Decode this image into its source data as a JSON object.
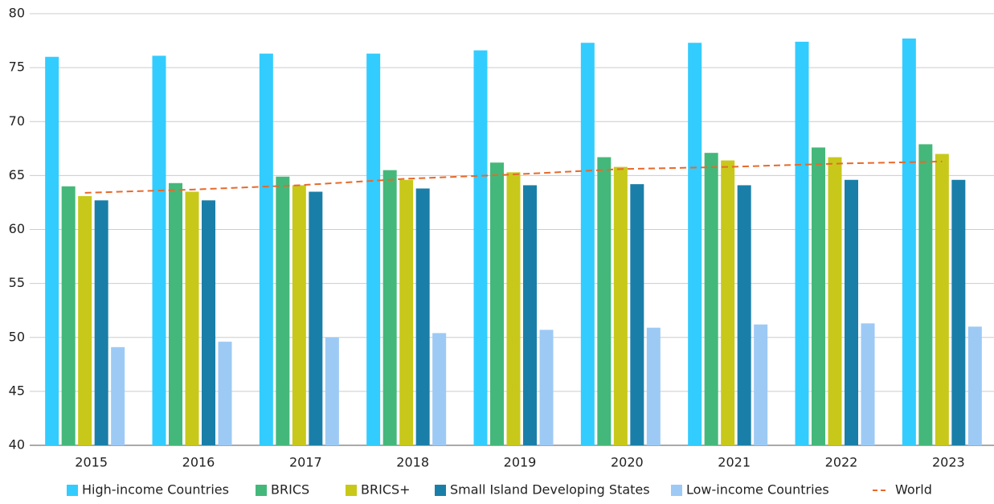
{
  "chart_data": {
    "type": "bar",
    "categories": [
      "2015",
      "2016",
      "2017",
      "2018",
      "2019",
      "2020",
      "2021",
      "2022",
      "2023"
    ],
    "series": [
      {
        "name": "High-income Countries",
        "color": "#33ccff",
        "values": [
          76.0,
          76.1,
          76.3,
          76.3,
          76.6,
          77.3,
          77.3,
          77.4,
          77.7
        ]
      },
      {
        "name": "BRICS",
        "color": "#44b87a",
        "values": [
          64.0,
          64.3,
          64.9,
          65.5,
          66.2,
          66.7,
          67.1,
          67.6,
          67.9
        ]
      },
      {
        "name": "BRICS+",
        "color": "#c8c81a",
        "values": [
          63.1,
          63.5,
          64.1,
          64.6,
          65.3,
          65.8,
          66.4,
          66.7,
          67.0
        ]
      },
      {
        "name": "Small Island Developing States",
        "color": "#1a7fa8",
        "values": [
          62.7,
          62.7,
          63.5,
          63.8,
          64.1,
          64.2,
          64.1,
          64.6,
          64.6
        ]
      },
      {
        "name": "Low-income Countries",
        "color": "#9dcaf5",
        "values": [
          49.1,
          49.6,
          50.0,
          50.4,
          50.7,
          50.9,
          51.2,
          51.3,
          51.0
        ]
      },
      {
        "name": "World",
        "color": "#e8692a",
        "type": "line",
        "values": [
          63.4,
          63.7,
          64.1,
          64.7,
          65.1,
          65.6,
          65.8,
          66.1,
          66.3
        ]
      }
    ],
    "ylim": [
      40,
      80
    ],
    "yticks": [
      40,
      45,
      50,
      55,
      60,
      65,
      70,
      75,
      80
    ],
    "grid": true,
    "legend": "bottom"
  }
}
